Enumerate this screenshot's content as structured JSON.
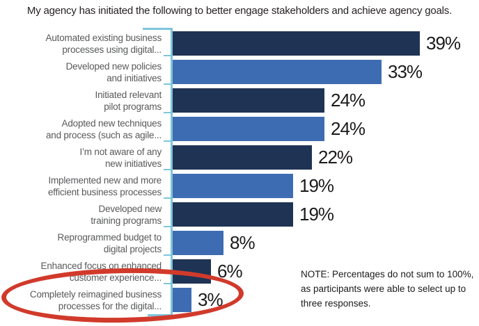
{
  "title": "My agency has initiated the following to better engage stakeholders and achieve agency goals.",
  "note": "NOTE: Percentages do not sum to 100%,\nas participants were able to select up to\nthree responses.",
  "colors": {
    "navy": "#1f3354",
    "blue": "#3e6cb2",
    "axis_light_blue": "#7ec5dc",
    "highlight_red": "#d13a2b",
    "label_gray": "#58595b",
    "value_text": "#1c1a1b"
  },
  "chart_data": {
    "type": "bar",
    "orientation": "horizontal",
    "title": "My agency has initiated the following to better engage stakeholders and achieve agency goals.",
    "unit": "%",
    "xlim": [
      0,
      42
    ],
    "grid": false,
    "legend": false,
    "categories": [
      "Automated existing business processes using digital...",
      "Developed new policies and initiatives",
      "Initiated relevant pilot programs",
      "Adopted new techniques and process (such as agile...",
      "I’m not aware of any new initiatives",
      "Implemented new and more efficient business processes",
      "Developed new training programs",
      "Reprogrammed budget to digital projects",
      "Enhanced focus on enhanced customer experience...",
      "Completely reimagined business processes for the digital..."
    ],
    "values": [
      39,
      33,
      24,
      24,
      22,
      19,
      19,
      8,
      6,
      3
    ],
    "bars": [
      {
        "label": "Automated existing business\nprocesses using digital...",
        "value": 39,
        "display": "39%",
        "color": "navy"
      },
      {
        "label": "Developed new policies\nand initiatives",
        "value": 33,
        "display": "33%",
        "color": "blue"
      },
      {
        "label": "Initiated relevant\npilot programs",
        "value": 24,
        "display": "24%",
        "color": "navy"
      },
      {
        "label": "Adopted new techniques\nand process (such as agile...",
        "value": 24,
        "display": "24%",
        "color": "blue"
      },
      {
        "label": "I’m not aware of any\nnew initiatives",
        "value": 22,
        "display": "22%",
        "color": "navy"
      },
      {
        "label": "Implemented new and more\nefficient business processes",
        "value": 19,
        "display": "19%",
        "color": "blue"
      },
      {
        "label": "Developed new\ntraining programs",
        "value": 19,
        "display": "19%",
        "color": "navy"
      },
      {
        "label": "Reprogrammed budget to\ndigital projects",
        "value": 8,
        "display": "8%",
        "color": "blue"
      },
      {
        "label": "Enhanced focus on enhanced\ncustomer experience...",
        "value": 6,
        "display": "6%",
        "color": "navy"
      },
      {
        "label": "Completely reimagined business\nprocesses for the digital...",
        "value": 3,
        "display": "3%",
        "color": "blue"
      }
    ],
    "annotation": {
      "type": "red-ellipse-highlight",
      "highlighted_category": "Completely reimagined business processes for the digital...",
      "highlighted_value": 3
    }
  }
}
